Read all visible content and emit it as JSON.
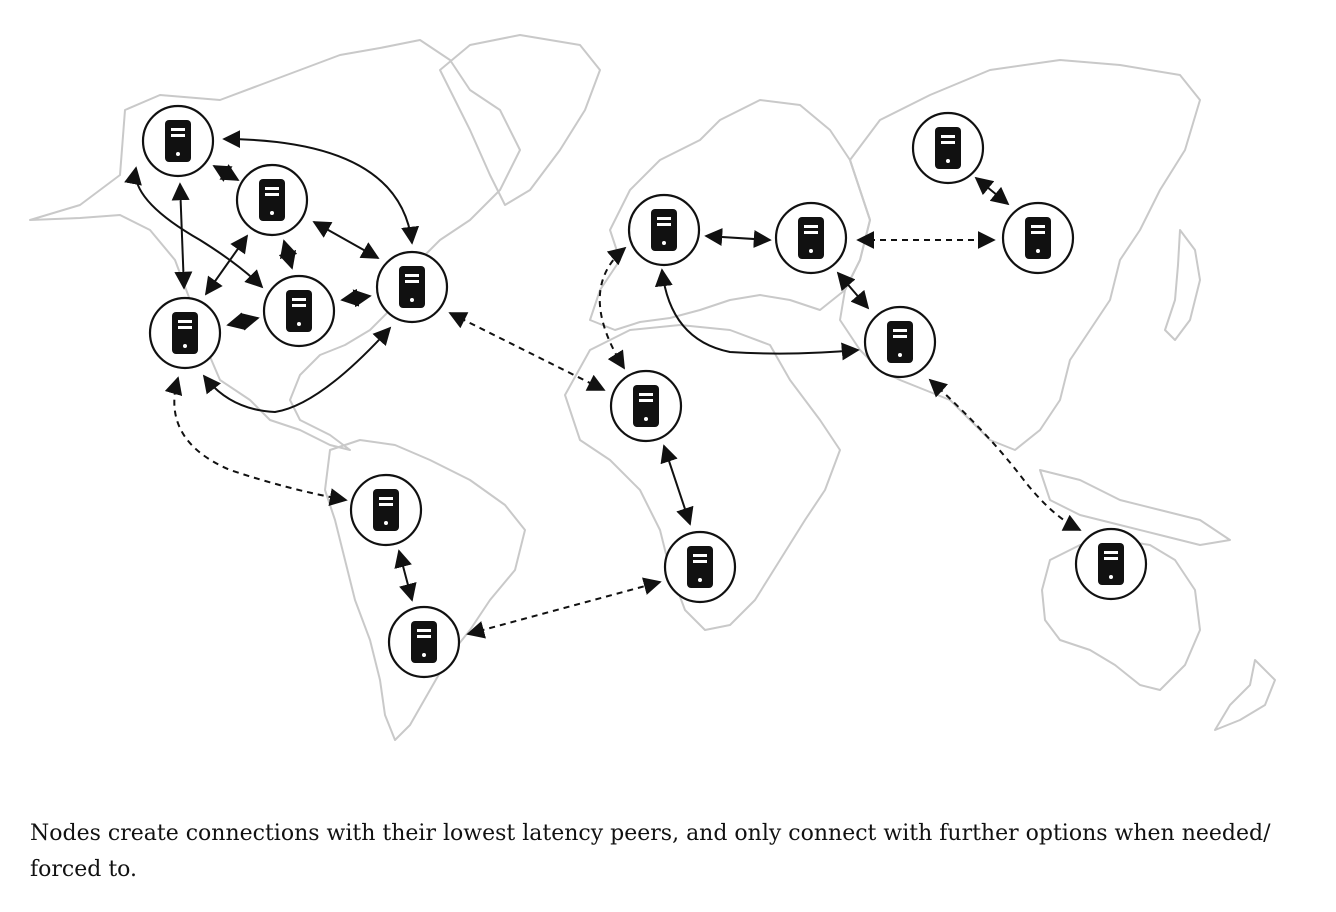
{
  "caption": "Nodes create connections with their lowest latency peers, and only connect with further options when needed/ forced to.",
  "colors": {
    "land_outline": "#c9c9c9",
    "node": "#111111",
    "background": "#ffffff"
  },
  "icons": {
    "node": "server-icon"
  }
}
